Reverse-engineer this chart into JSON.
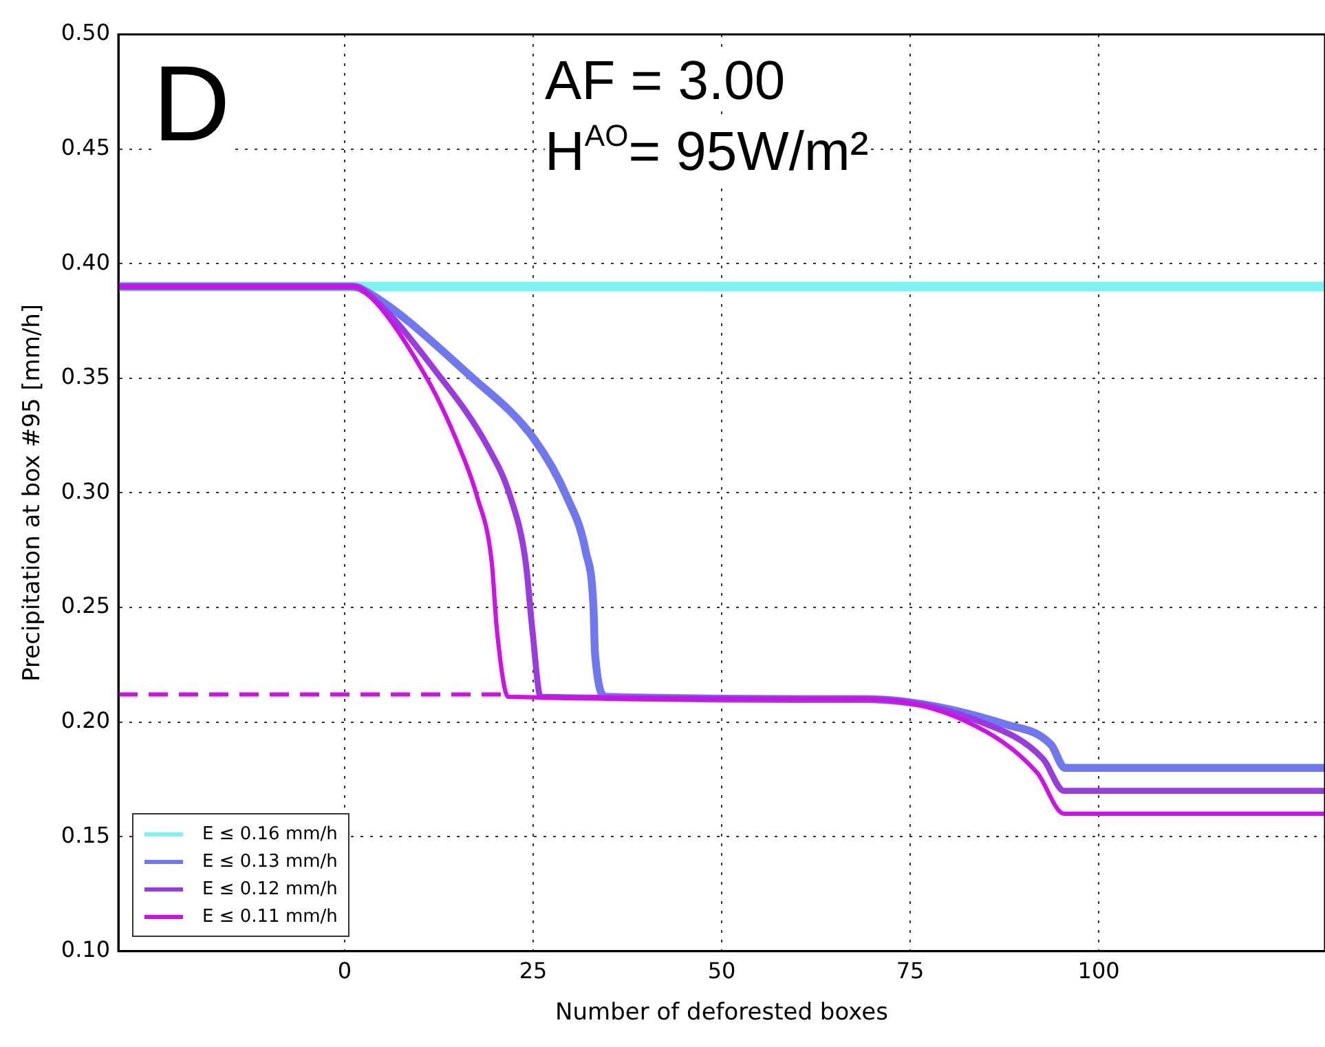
{
  "chart_data": {
    "type": "line",
    "xlabel": "Number of deforested boxes",
    "ylabel": "Precipitation at box #95 [mm/h]",
    "annotations": [
      "D",
      "AF = 3.00",
      "H$^{AO}$= 95W/m²"
    ],
    "xlim": [
      -30,
      130
    ],
    "xticks": [
      0,
      25,
      50,
      75,
      100
    ],
    "ylim": [
      0.1,
      0.5
    ],
    "yticks": [
      {
        "value": 0.1,
        "label": "0.10"
      },
      0.15,
      {
        "value": 0.2,
        "label": "0.20"
      },
      0.25,
      {
        "value": 0.3,
        "label": "0.30"
      },
      0.35,
      {
        "value": 0.4,
        "label": "0.40"
      },
      0.45,
      {
        "value": 0.5,
        "label": "0.50"
      }
    ],
    "grid": true,
    "legend": "bottom left",
    "line_style": "solid",
    "marker": "none",
    "series": [
      {
        "name": "E ≤ 0.16 mm/h",
        "color": "#80f2f2",
        "x": [
          -30,
          130
        ],
        "values": [
          0.39,
          0.39
        ]
      },
      {
        "name": "E ≤ 0.13 mm/h",
        "color": "#6f78f0",
        "x": [
          -30,
          1,
          2.2,
          17,
          25,
          29.5,
          32,
          33,
          33.2,
          34.7,
          69,
          87.6,
          93.7,
          95.5,
          130
        ],
        "values": [
          0.39,
          0.39,
          0.389,
          0.35,
          0.324,
          0.298,
          0.274,
          0.25,
          0.23,
          0.211,
          0.21,
          0.199,
          0.19,
          0.18,
          0.18
        ]
      },
      {
        "name": "E ≤ 0.12 mm/h",
        "color": "#9a3be0",
        "x": [
          -30,
          1,
          2.2,
          12.8,
          19,
          22,
          24,
          24.9,
          26,
          69,
          84.4,
          92.6,
          95.4,
          130
        ],
        "values": [
          0.39,
          0.39,
          0.389,
          0.35,
          0.32,
          0.298,
          0.27,
          0.24,
          0.211,
          0.21,
          0.2,
          0.184,
          0.17,
          0.17
        ]
      },
      {
        "name": "E ≤ 0.11 mm/h",
        "color": "#d010e8",
        "x": [
          -30,
          1,
          2.2,
          10.9,
          15.2,
          17.6,
          19.5,
          20.2,
          21.7,
          69,
          82.6,
          91.8,
          95.4,
          130
        ],
        "values": [
          0.39,
          0.39,
          0.389,
          0.35,
          0.32,
          0.298,
          0.27,
          0.24,
          0.211,
          0.21,
          0.2,
          0.178,
          0.16,
          0.16
        ]
      },
      {
        "color": "#d010e8",
        "line_style": "dashed",
        "x": [
          -30,
          21.7
        ],
        "values": [
          0.212,
          0.212
        ]
      }
    ]
  }
}
